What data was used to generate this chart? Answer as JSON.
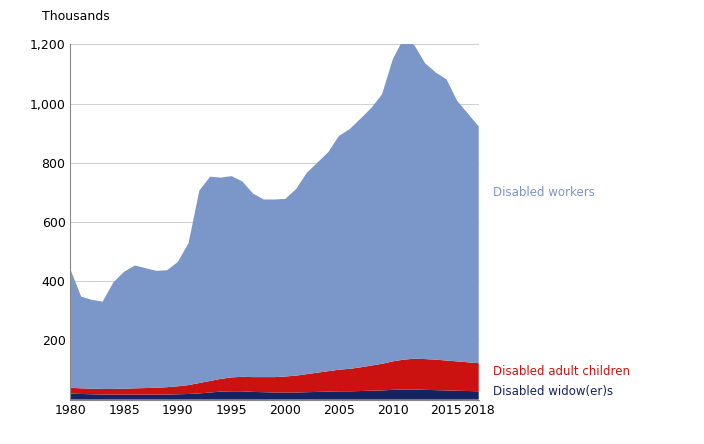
{
  "years": [
    1980,
    1981,
    1982,
    1983,
    1984,
    1985,
    1986,
    1987,
    1988,
    1989,
    1990,
    1991,
    1992,
    1993,
    1994,
    1995,
    1996,
    1997,
    1998,
    1999,
    2000,
    2001,
    2002,
    2003,
    2004,
    2005,
    2006,
    2007,
    2008,
    2009,
    2010,
    2011,
    2012,
    2013,
    2014,
    2015,
    2016,
    2017,
    2018
  ],
  "disabled_widowers": [
    20,
    19,
    18,
    17,
    17,
    17,
    17,
    17,
    17,
    17,
    18,
    19,
    21,
    24,
    27,
    28,
    28,
    26,
    25,
    24,
    24,
    24,
    25,
    26,
    27,
    28,
    28,
    29,
    30,
    31,
    33,
    34,
    34,
    33,
    32,
    31,
    30,
    29,
    28
  ],
  "disabled_adult_children": [
    20,
    19,
    19,
    19,
    19,
    20,
    21,
    22,
    23,
    25,
    27,
    30,
    35,
    39,
    43,
    47,
    49,
    50,
    51,
    52,
    54,
    57,
    61,
    65,
    69,
    73,
    76,
    80,
    85,
    90,
    96,
    101,
    104,
    104,
    103,
    101,
    99,
    97,
    95
  ],
  "disabled_workers": [
    400,
    310,
    300,
    295,
    360,
    395,
    415,
    405,
    395,
    395,
    420,
    480,
    650,
    690,
    680,
    680,
    660,
    620,
    600,
    600,
    600,
    630,
    680,
    710,
    740,
    790,
    810,
    840,
    870,
    910,
    1020,
    1085,
    1060,
    1000,
    970,
    950,
    880,
    840,
    800
  ],
  "colors": {
    "disabled_widowers": "#152460",
    "disabled_adult_children": "#cc1111",
    "disabled_workers": "#7b96c8"
  },
  "ylabel": "Thousands",
  "ylim": [
    0,
    1200
  ],
  "yticks": [
    0,
    200,
    400,
    600,
    800,
    1000,
    1200
  ],
  "xlim": [
    1980,
    2018
  ],
  "xticks": [
    1980,
    1985,
    1990,
    1995,
    2000,
    2005,
    2010,
    2015,
    2018
  ],
  "labels": {
    "disabled_workers": "Disabled workers",
    "disabled_adult_children": "Disabled adult children",
    "disabled_widowers": "Disabled widow(er)s"
  },
  "label_colors": {
    "disabled_workers": "#7b96c8",
    "disabled_adult_children": "#cc1111",
    "disabled_widowers": "#152460"
  },
  "label_y_data": {
    "disabled_workers": 700,
    "disabled_adult_children": 95,
    "disabled_widowers": 28
  }
}
